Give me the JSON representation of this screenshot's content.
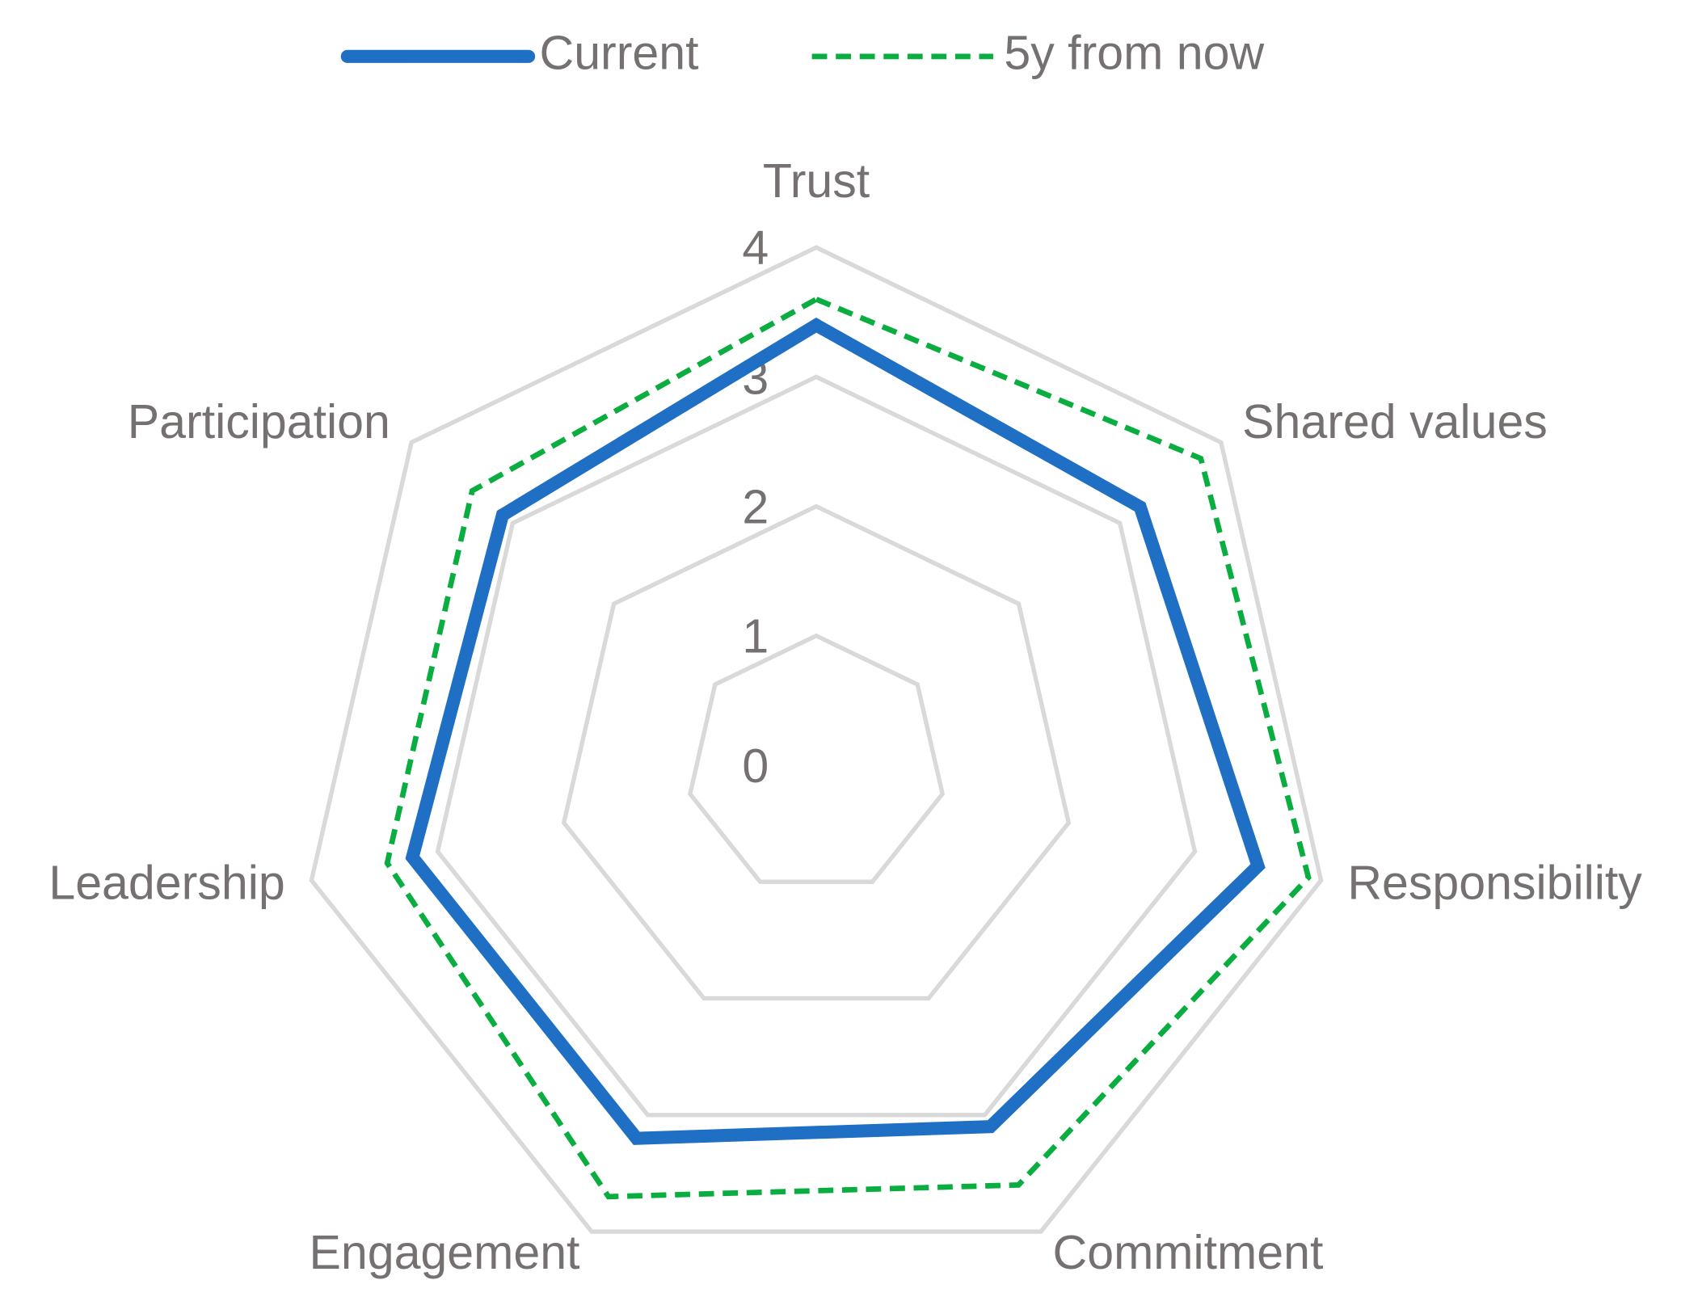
{
  "chart_data": {
    "type": "radar",
    "categories": [
      "Trust",
      "Shared values",
      "Responsibility",
      "Commitment",
      "Engagement",
      "Leadership",
      "Participation"
    ],
    "series": [
      {
        "name": "Current",
        "color": "#1f6fc5",
        "values": [
          3.4,
          3.2,
          3.5,
          3.1,
          3.2,
          3.2,
          3.1
        ]
      },
      {
        "name": "5y from now",
        "color": "#0aad3f",
        "values": [
          3.6,
          3.8,
          3.9,
          3.6,
          3.7,
          3.4,
          3.4
        ]
      }
    ],
    "ylim": [
      0,
      4
    ],
    "yticks": [
      0,
      1,
      2,
      3,
      4
    ],
    "grid": true,
    "legend": "top"
  }
}
